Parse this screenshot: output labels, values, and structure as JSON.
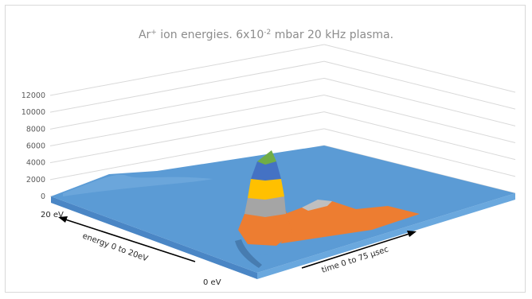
{
  "chart_data": {
    "type": "surface",
    "title_parts": {
      "before_sup": "Ar",
      "sup": "+",
      "after_sup": " ion energies. 6x10",
      "exp": "-2",
      "rest": " mbar 20 kHz plasma."
    },
    "z_ticks": [
      "12000",
      "10000",
      "8000",
      "6000",
      "4000",
      "2000",
      "0"
    ],
    "z_range": [
      0,
      12000
    ],
    "energy_axis": {
      "label": "energy 0 to 20eV",
      "start_label": "0 eV",
      "end_label": "20 eV",
      "range": [
        0,
        20
      ]
    },
    "time_axis": {
      "label": "time 0 to 75 μsec",
      "range": [
        0,
        75
      ]
    },
    "band_colors": [
      "#5b9bd5",
      "#ed7d31",
      "#a5a5a5",
      "#ffc000",
      "#4472c4",
      "#70ad47"
    ],
    "peak": {
      "time_fraction": 0.2,
      "energy_fraction": 0.55,
      "value": 10500
    },
    "grid": true
  }
}
